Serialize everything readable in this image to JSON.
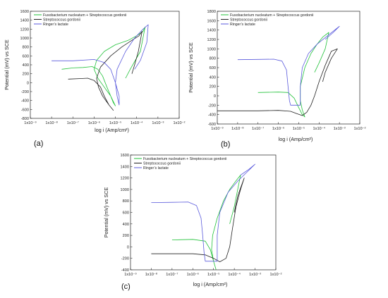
{
  "chart_data": [
    {
      "type": "line",
      "panel_label": "(a)",
      "xlabel": "log i (Amp/cm²)",
      "ylabel": "Potential (mV) vs SCE",
      "xscale": "log",
      "xlim": [
        1e-09,
        0.01
      ],
      "ylim": [
        -800,
        1600
      ],
      "yticks": [
        -800,
        -600,
        -400,
        -200,
        0,
        200,
        400,
        600,
        800,
        1000,
        1200,
        1400,
        1600
      ],
      "xtick_labels": [
        "1x10⁻⁹",
        "1x10⁻⁸",
        "1x10⁻⁷",
        "1x10⁻⁶",
        "1x10⁻⁵",
        "1x10⁻⁴",
        "1x10⁻³",
        "1x10⁻²"
      ],
      "legend_position": "top-left",
      "series": [
        {
          "name": "Fusobacterium nucleatum + Streptococcus gordonii",
          "color": "#22c23a",
          "points": [
            [
              3e-08,
              300
            ],
            [
              1e-07,
              330
            ],
            [
              3e-07,
              340
            ],
            [
              8e-07,
              360
            ],
            [
              1.5e-06,
              300
            ],
            [
              2.5e-06,
              150
            ],
            [
              4e-06,
              -100
            ],
            [
              6e-06,
              -300
            ],
            [
              8e-06,
              -450
            ],
            [
              1e-05,
              -520
            ],
            [
              6e-06,
              -300
            ],
            [
              3e-06,
              -100
            ],
            [
              1.5e-06,
              100
            ],
            [
              1e-06,
              300
            ],
            [
              1.3e-06,
              500
            ],
            [
              3e-06,
              700
            ],
            [
              1e-05,
              850
            ],
            [
              4e-05,
              950
            ],
            [
              0.0001,
              1050
            ],
            [
              0.0002,
              1150
            ],
            [
              0.00025,
              1250
            ],
            [
              0.00015,
              700
            ],
            [
              5e-05,
              300
            ],
            [
              3e-05,
              100
            ]
          ]
        },
        {
          "name": "Streptococcus gordonii",
          "color": "#222222",
          "points": [
            [
              6e-08,
              80
            ],
            [
              2e-07,
              90
            ],
            [
              5e-07,
              100
            ],
            [
              1e-06,
              50
            ],
            [
              2e-06,
              -100
            ],
            [
              3e-06,
              -300
            ],
            [
              5e-06,
              -500
            ],
            [
              8e-06,
              -620
            ],
            [
              5e-06,
              -500
            ],
            [
              2.5e-06,
              -300
            ],
            [
              1.6e-06,
              -100
            ],
            [
              1.3e-06,
              100
            ],
            [
              2e-06,
              350
            ],
            [
              6e-06,
              600
            ],
            [
              2e-05,
              800
            ],
            [
              6e-05,
              950
            ],
            [
              0.00013,
              1050
            ],
            [
              0.00018,
              1150
            ],
            [
              0.00012,
              700
            ],
            [
              8e-05,
              400
            ],
            [
              6e-05,
              200
            ]
          ]
        },
        {
          "name": "Ringer’s lactate",
          "color": "#5a5adc",
          "points": [
            [
              1e-08,
              490
            ],
            [
              1e-07,
              490
            ],
            [
              1e-06,
              520
            ],
            [
              3e-06,
              450
            ],
            [
              6e-06,
              300
            ],
            [
              1e-05,
              0
            ],
            [
              1.5e-05,
              -300
            ],
            [
              1.5e-05,
              -500
            ],
            [
              1.2e-05,
              -300
            ],
            [
              1e-05,
              0
            ],
            [
              1.2e-05,
              300
            ],
            [
              3e-05,
              700
            ],
            [
              8e-05,
              1000
            ],
            [
              0.0002,
              1200
            ],
            [
              0.00035,
              1300
            ],
            [
              0.0003,
              900
            ],
            [
              0.00015,
              500
            ],
            [
              8e-05,
              300
            ]
          ]
        }
      ]
    },
    {
      "type": "line",
      "panel_label": "(b)",
      "xlabel": "log i (Amp/cm²)",
      "ylabel": "Potential (mV) vs SCE",
      "xscale": "log",
      "xlim": [
        1e-09,
        0.01
      ],
      "ylim": [
        -600,
        1800
      ],
      "yticks": [
        -600,
        -400,
        -200,
        0,
        200,
        400,
        600,
        800,
        1000,
        1200,
        1400,
        1600,
        1800
      ],
      "xtick_labels": [
        "1x10⁻⁹",
        "1x10⁻⁸",
        "1x10⁻⁷",
        "1x10⁻⁶",
        "1x10⁻⁵",
        "1x10⁻⁴",
        "1x10⁻³",
        "1x10⁻²"
      ],
      "legend_position": "top-left",
      "series": [
        {
          "name": "Fusobacterium nucleatum + Streptococcus gordonii",
          "color": "#22c23a",
          "points": [
            [
              1e-07,
              70
            ],
            [
              1e-06,
              80
            ],
            [
              3e-06,
              70
            ],
            [
              6e-06,
              -50
            ],
            [
              1e-05,
              -250
            ],
            [
              1.5e-05,
              -400
            ],
            [
              2e-05,
              -450
            ],
            [
              1.5e-05,
              -300
            ],
            [
              1.2e-05,
              -100
            ],
            [
              1.2e-05,
              200
            ],
            [
              2e-05,
              600
            ],
            [
              4e-05,
              900
            ],
            [
              8e-05,
              1100
            ],
            [
              0.00015,
              1250
            ],
            [
              0.0003,
              1350
            ],
            [
              0.0002,
              1000
            ],
            [
              0.0001,
              700
            ],
            [
              6e-05,
              500
            ]
          ]
        },
        {
          "name": "Streptococcus gordonii",
          "color": "#222222",
          "points": [
            [
              1e-09,
              -320
            ],
            [
              1e-07,
              -320
            ],
            [
              1e-06,
              -310
            ],
            [
              4e-06,
              -330
            ],
            [
              8e-06,
              -380
            ],
            [
              1.5e-05,
              -420
            ],
            [
              2.5e-05,
              -350
            ],
            [
              4e-05,
              -200
            ],
            [
              6e-05,
              0
            ],
            [
              0.0001,
              300
            ],
            [
              0.0002,
              650
            ],
            [
              0.0004,
              950
            ],
            [
              0.0008,
              1000
            ],
            [
              0.0004,
              800
            ],
            [
              0.0002,
              500
            ],
            [
              0.00015,
              300
            ]
          ]
        },
        {
          "name": "Ringer’s lactate",
          "color": "#5a5adc",
          "points": [
            [
              1e-08,
              770
            ],
            [
              1e-07,
              775
            ],
            [
              6e-07,
              780
            ],
            [
              1.5e-06,
              740
            ],
            [
              2.5e-06,
              550
            ],
            [
              3e-06,
              200
            ],
            [
              3.5e-06,
              -100
            ],
            [
              4e-06,
              -200
            ],
            [
              1.2e-05,
              -200
            ],
            [
              1.2e-05,
              200
            ],
            [
              1.5e-05,
              600
            ],
            [
              3e-05,
              900
            ],
            [
              8e-05,
              1100
            ],
            [
              0.0003,
              1300
            ],
            [
              0.001,
              1480
            ],
            [
              0.0005,
              1350
            ],
            [
              0.0002,
              1200
            ]
          ]
        }
      ]
    },
    {
      "type": "line",
      "panel_label": "(c)",
      "xlabel": "log i (Amp/cm²)",
      "ylabel": "Potential (mV) vs SCE",
      "xscale": "log",
      "xlim": [
        1e-09,
        0.01
      ],
      "ylim": [
        -400,
        1600
      ],
      "yticks": [
        -400,
        -200,
        0,
        200,
        400,
        600,
        800,
        1000,
        1200,
        1400,
        1600
      ],
      "xtick_labels": [
        "1x10⁻⁹",
        "1x10⁻⁸",
        "1x10⁻⁷",
        "1x10⁻⁶",
        "1x10⁻⁵",
        "1x10⁻⁴",
        "1x10⁻³",
        "1x10⁻²"
      ],
      "legend_position": "top-left",
      "series": [
        {
          "name": "Fusobacterium nucleatum + Streptococcus gordonii",
          "color": "#22c23a",
          "points": [
            [
              1e-07,
              120
            ],
            [
              1e-06,
              130
            ],
            [
              4e-06,
              100
            ],
            [
              7e-06,
              -50
            ],
            [
              1e-05,
              -250
            ],
            [
              1.3e-05,
              -390
            ],
            [
              1e-05,
              -250
            ],
            [
              8e-06,
              -50
            ],
            [
              9e-06,
              200
            ],
            [
              1.5e-05,
              500
            ],
            [
              3e-05,
              800
            ],
            [
              6e-05,
              1000
            ],
            [
              0.00012,
              1150
            ],
            [
              0.0002,
              1250
            ],
            [
              0.0001,
              700
            ],
            [
              6e-05,
              400
            ]
          ]
        },
        {
          "name": "Streptococcus gordonii",
          "color": "#222222",
          "points": [
            [
              1e-08,
              -120
            ],
            [
              1e-07,
              -120
            ],
            [
              1e-06,
              -120
            ],
            [
              4e-06,
              -140
            ],
            [
              1e-05,
              -200
            ],
            [
              2e-05,
              -260
            ],
            [
              4e-05,
              -200
            ],
            [
              6e-05,
              0
            ],
            [
              8e-05,
              300
            ],
            [
              0.00012,
              700
            ],
            [
              0.0002,
              1000
            ],
            [
              0.0003,
              1200
            ],
            [
              0.00015,
              900
            ],
            [
              0.0001,
              600
            ]
          ]
        },
        {
          "name": "Ringer’s lactate",
          "color": "#5a5adc",
          "points": [
            [
              1e-08,
              770
            ],
            [
              1e-07,
              775
            ],
            [
              6e-07,
              780
            ],
            [
              1.5e-06,
              720
            ],
            [
              2.5e-06,
              500
            ],
            [
              3e-06,
              200
            ],
            [
              3.5e-06,
              -100
            ],
            [
              4e-06,
              -250
            ],
            [
              1.5e-05,
              -250
            ],
            [
              1.5e-05,
              200
            ],
            [
              2e-05,
              600
            ],
            [
              5e-05,
              950
            ],
            [
              0.00015,
              1150
            ],
            [
              0.0004,
              1300
            ],
            [
              0.001,
              1440
            ],
            [
              0.0005,
              1350
            ],
            [
              0.0002,
              1250
            ]
          ]
        }
      ]
    }
  ]
}
